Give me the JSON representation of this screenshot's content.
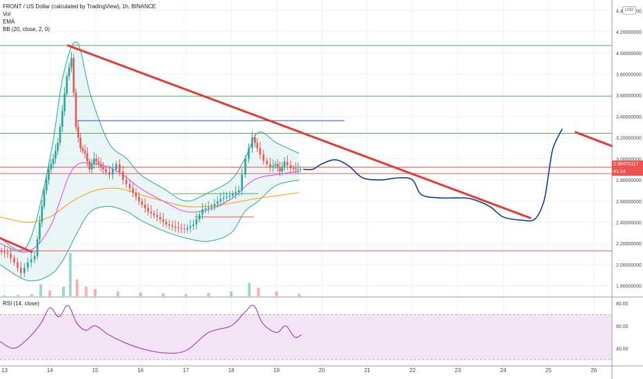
{
  "header": {
    "title": "FRONT / US Dollar (calculated by TradingView), 1h, BINANCE",
    "indicators": [
      "Vol",
      "EMA",
      "BB (20, close, 2, 0)"
    ],
    "rsi_label": "RSI (14, close)",
    "currency_button": "USD"
  },
  "last_price": {
    "value": "2.90470117",
    "countdown": "41:14"
  },
  "colors": {
    "trendline": "#e53935",
    "forecast_path": "#0d3b9a",
    "horizontal_green": "#4caf50",
    "horizontal_red": "#ef5350",
    "horizontal_blue": "#1e4fc2",
    "bb_band": "#26a69a",
    "bb_fill": "#e0f2f1",
    "ema_orange": "#ff9800",
    "ema_pink": "#e040fb",
    "ema_maroon": "#880e4f",
    "rsi_line": "#9c27b0",
    "rsi_fill": "#f3e5f5",
    "candle_up": "#26a69a",
    "candle_down": "#ef5350"
  },
  "chart_data": [
    {
      "type": "candlestick",
      "title": "FRONT / US Dollar (calculated by TradingView), 1h, BINANCE",
      "x_tick_labels": [
        "13",
        "14",
        "15",
        "16",
        "17",
        "18",
        "19",
        "20",
        "21",
        "22",
        "23",
        "24",
        "25",
        "26"
      ],
      "y_tick_labels": [
        "1.80000000",
        "2.00000000",
        "2.20000000",
        "2.40000000",
        "2.60000000",
        "2.80000000",
        "3.00000000",
        "3.20000000",
        "3.40000000",
        "3.60000000",
        "3.80000000",
        "4.00000000",
        "4.20000000",
        "4.40000000"
      ],
      "x_range": [
        12.9,
        26.4
      ],
      "y_range": [
        1.7,
        4.5
      ],
      "price_path": [
        [
          12.9,
          2.13
        ],
        [
          13.1,
          2.1
        ],
        [
          13.25,
          2.02
        ],
        [
          13.4,
          1.92
        ],
        [
          13.55,
          2.02
        ],
        [
          13.7,
          2.08
        ],
        [
          13.8,
          2.4
        ],
        [
          13.9,
          2.7
        ],
        [
          14.0,
          2.9
        ],
        [
          14.1,
          3.0
        ],
        [
          14.2,
          3.15
        ],
        [
          14.3,
          3.45
        ],
        [
          14.4,
          3.78
        ],
        [
          14.5,
          3.95
        ],
        [
          14.6,
          3.3
        ],
        [
          14.7,
          3.1
        ],
        [
          14.8,
          3.05
        ],
        [
          14.9,
          2.9
        ],
        [
          15.0,
          3.0
        ],
        [
          15.1,
          2.95
        ],
        [
          15.2,
          2.9
        ],
        [
          15.35,
          2.85
        ],
        [
          15.5,
          2.95
        ],
        [
          15.65,
          2.8
        ],
        [
          15.8,
          2.72
        ],
        [
          16.0,
          2.6
        ],
        [
          16.2,
          2.5
        ],
        [
          16.4,
          2.45
        ],
        [
          16.6,
          2.38
        ],
        [
          16.8,
          2.35
        ],
        [
          17.0,
          2.33
        ],
        [
          17.2,
          2.38
        ],
        [
          17.4,
          2.52
        ],
        [
          17.6,
          2.55
        ],
        [
          17.8,
          2.62
        ],
        [
          18.0,
          2.65
        ],
        [
          18.2,
          2.7
        ],
        [
          18.35,
          3.0
        ],
        [
          18.5,
          3.2
        ],
        [
          18.6,
          3.1
        ],
        [
          18.75,
          2.98
        ],
        [
          18.9,
          2.92
        ],
        [
          19.0,
          2.95
        ],
        [
          19.1,
          2.88
        ],
        [
          19.2,
          2.97
        ],
        [
          19.35,
          2.91
        ],
        [
          19.45,
          2.9
        ],
        [
          19.55,
          2.9
        ]
      ],
      "bollinger_upper": [
        [
          12.9,
          2.25
        ],
        [
          13.5,
          2.18
        ],
        [
          14.0,
          3.0
        ],
        [
          14.3,
          3.8
        ],
        [
          14.6,
          4.1
        ],
        [
          14.9,
          3.6
        ],
        [
          15.3,
          3.15
        ],
        [
          15.7,
          3.0
        ],
        [
          16.0,
          2.85
        ],
        [
          16.5,
          2.72
        ],
        [
          17.0,
          2.6
        ],
        [
          17.5,
          2.68
        ],
        [
          18.0,
          2.8
        ],
        [
          18.3,
          3.0
        ],
        [
          18.6,
          3.25
        ],
        [
          19.0,
          3.15
        ],
        [
          19.5,
          3.05
        ]
      ],
      "bollinger_lower": [
        [
          12.9,
          2.0
        ],
        [
          13.5,
          1.85
        ],
        [
          14.0,
          1.9
        ],
        [
          14.3,
          2.05
        ],
        [
          14.6,
          2.3
        ],
        [
          14.9,
          2.5
        ],
        [
          15.3,
          2.55
        ],
        [
          15.7,
          2.5
        ],
        [
          16.0,
          2.42
        ],
        [
          16.5,
          2.32
        ],
        [
          17.0,
          2.25
        ],
        [
          17.5,
          2.22
        ],
        [
          18.0,
          2.3
        ],
        [
          18.3,
          2.5
        ],
        [
          18.6,
          2.6
        ],
        [
          19.0,
          2.75
        ],
        [
          19.5,
          2.8
        ]
      ],
      "ema_orange": [
        [
          12.9,
          2.45
        ],
        [
          13.5,
          2.4
        ],
        [
          14.0,
          2.45
        ],
        [
          14.5,
          2.6
        ],
        [
          15.0,
          2.7
        ],
        [
          15.5,
          2.72
        ],
        [
          16.0,
          2.66
        ],
        [
          16.5,
          2.6
        ],
        [
          17.0,
          2.55
        ],
        [
          17.5,
          2.55
        ],
        [
          18.0,
          2.58
        ],
        [
          18.5,
          2.62
        ],
        [
          19.0,
          2.65
        ],
        [
          19.5,
          2.68
        ]
      ],
      "ema_pink": [
        [
          12.9,
          2.2
        ],
        [
          13.5,
          2.12
        ],
        [
          14.0,
          2.35
        ],
        [
          14.5,
          2.9
        ],
        [
          15.0,
          2.95
        ],
        [
          15.5,
          2.88
        ],
        [
          16.0,
          2.72
        ],
        [
          16.5,
          2.6
        ],
        [
          17.0,
          2.5
        ],
        [
          17.5,
          2.52
        ],
        [
          18.0,
          2.62
        ],
        [
          18.5,
          2.8
        ],
        [
          19.0,
          2.85
        ],
        [
          19.5,
          2.88
        ]
      ],
      "trendlines": [
        {
          "from": [
            12.9,
            2.25
          ],
          "to": [
            13.6,
            2.12
          ]
        },
        {
          "from": [
            14.4,
            4.07
          ],
          "to": [
            24.6,
            2.44
          ]
        },
        {
          "from": [
            25.6,
            3.25
          ],
          "to": [
            26.4,
            3.12
          ]
        }
      ],
      "horizontal_levels": [
        {
          "y": 4.07,
          "color": "green",
          "x_from": 12.9
        },
        {
          "y": 3.59,
          "color": "green",
          "x_from": 12.9
        },
        {
          "y": 3.24,
          "color": "green",
          "x_from": 12.9
        },
        {
          "y": 2.67,
          "color": "green",
          "x_from": 16.7,
          "x_to": 18.6
        },
        {
          "y": 2.92,
          "color": "red",
          "x_from": 12.9
        },
        {
          "y": 2.86,
          "color": "red",
          "x_from": 12.9
        },
        {
          "y": 2.45,
          "color": "red",
          "x_from": 17.2,
          "x_to": 18.5
        },
        {
          "y": 2.13,
          "color": "red",
          "x_from": 12.9
        },
        {
          "y": 3.36,
          "color": "blue",
          "x_from": 14.6,
          "x_to": 20.5
        }
      ],
      "forecast_path": [
        [
          19.6,
          2.9
        ],
        [
          19.8,
          2.9
        ],
        [
          20.0,
          2.95
        ],
        [
          20.3,
          2.99
        ],
        [
          20.6,
          2.93
        ],
        [
          20.9,
          2.82
        ],
        [
          21.3,
          2.8
        ],
        [
          21.7,
          2.82
        ],
        [
          22.0,
          2.8
        ],
        [
          22.2,
          2.66
        ],
        [
          22.6,
          2.63
        ],
        [
          23.0,
          2.63
        ],
        [
          23.3,
          2.62
        ],
        [
          23.7,
          2.55
        ],
        [
          24.0,
          2.45
        ],
        [
          24.4,
          2.42
        ],
        [
          24.7,
          2.43
        ],
        [
          24.9,
          2.6
        ],
        [
          25.0,
          2.85
        ],
        [
          25.1,
          3.1
        ],
        [
          25.3,
          3.28
        ]
      ],
      "volume": [
        [
          13.0,
          0.02
        ],
        [
          13.3,
          0.03
        ],
        [
          13.6,
          0.04
        ],
        [
          13.8,
          0.25
        ],
        [
          14.0,
          0.12
        ],
        [
          14.3,
          0.2
        ],
        [
          14.45,
          0.9
        ],
        [
          14.6,
          0.35
        ],
        [
          14.8,
          0.2
        ],
        [
          15.0,
          0.15
        ],
        [
          15.5,
          0.1
        ],
        [
          16.0,
          0.08
        ],
        [
          16.5,
          0.06
        ],
        [
          17.0,
          0.05
        ],
        [
          17.5,
          0.07
        ],
        [
          18.0,
          0.1
        ],
        [
          18.4,
          0.28
        ],
        [
          18.6,
          0.18
        ],
        [
          19.0,
          0.1
        ],
        [
          19.5,
          0.05
        ]
      ]
    },
    {
      "type": "line",
      "title": "RSI (14, close)",
      "y_tick_labels": [
        "40.00",
        "60.00",
        "80.00"
      ],
      "y_range": [
        25,
        85
      ],
      "band": [
        30,
        70
      ],
      "series": [
        {
          "values": [
            [
              12.9,
              46
            ],
            [
              13.2,
              40
            ],
            [
              13.5,
              48
            ],
            [
              13.8,
              62
            ],
            [
              14.0,
              76
            ],
            [
              14.2,
              68
            ],
            [
              14.4,
              78
            ],
            [
              14.6,
              62
            ],
            [
              14.8,
              56
            ],
            [
              15.0,
              60
            ],
            [
              15.3,
              52
            ],
            [
              15.6,
              46
            ],
            [
              16.0,
              40
            ],
            [
              16.5,
              36
            ],
            [
              17.0,
              38
            ],
            [
              17.5,
              54
            ],
            [
              18.0,
              60
            ],
            [
              18.3,
              72
            ],
            [
              18.5,
              78
            ],
            [
              18.7,
              62
            ],
            [
              19.0,
              54
            ],
            [
              19.2,
              60
            ],
            [
              19.4,
              50
            ],
            [
              19.55,
              52
            ]
          ]
        }
      ]
    }
  ]
}
